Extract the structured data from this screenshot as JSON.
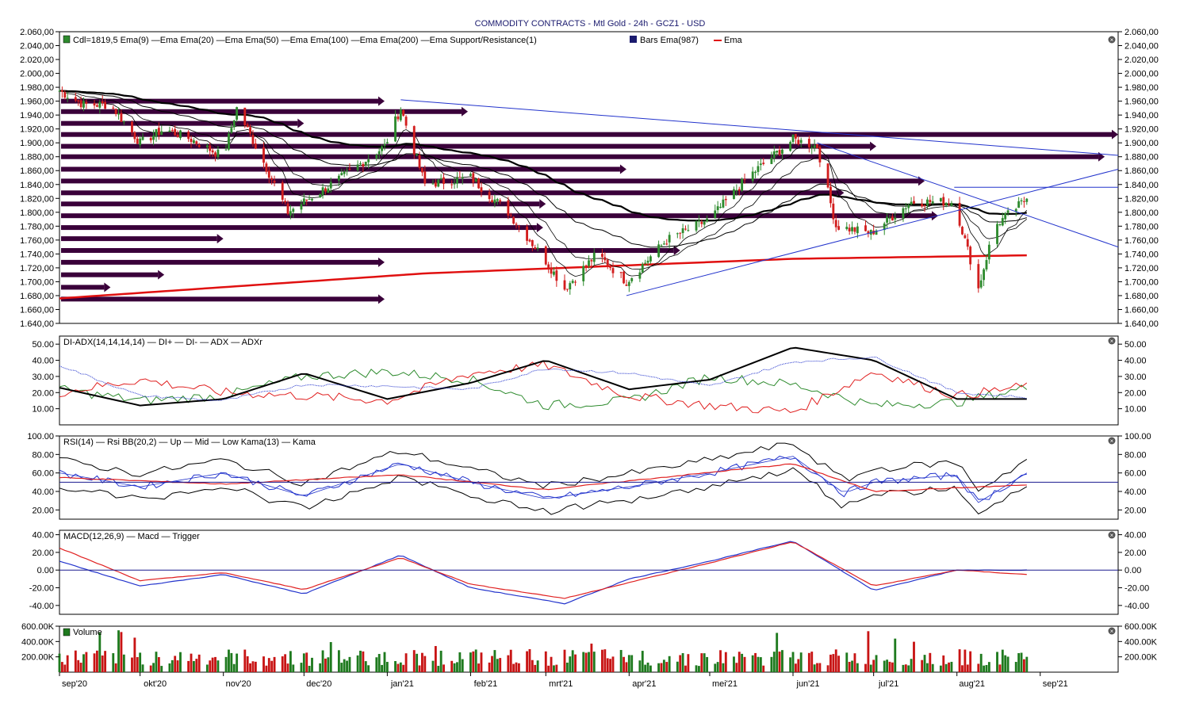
{
  "title": "COMMODITY CONTRACTS - Mtl Gold - 24h - GCZ1 - USD",
  "colors": {
    "up_candle": "#2e8b2e",
    "down_candle": "#d21e1e",
    "ema": "#000000",
    "ema987": "#e01010",
    "trend": "#2233cc",
    "sr_arrow": "#3a003a",
    "di_plus": "#2e8b2e",
    "di_minus": "#e02020",
    "adx": "#000000",
    "adxr": "#2233cc",
    "rsi": "#2233cc",
    "bb": "#000000",
    "kama": "#e02020",
    "macd": "#2233cc",
    "trigger": "#e02020",
    "vol_up": "#1e7a1e",
    "vol_down": "#c81414",
    "grid": "#000000"
  },
  "x_axis": {
    "labels": [
      "sep'20",
      "okt'20",
      "nov'20",
      "dec'20",
      "jan'21",
      "feb'21",
      "mrt'21",
      "apr'21",
      "mei'21",
      "jun'21",
      "jul'21",
      "aug'21",
      "sep'21"
    ]
  },
  "panels": {
    "price": {
      "legend": "Cdl=1819,5  Ema(9)  —Ema  Ema(20)  —Ema  Ema(50)  —Ema  Ema(100)  —Ema  Ema(200)  —Ema  Support/Resistance(1)",
      "legend_bars": "Bars  Ema(987)",
      "legend_ema": "Ema",
      "y_ticks": [
        "2.060,00",
        "2.040,00",
        "2.020,00",
        "2.000,00",
        "1.980,00",
        "1.960,00",
        "1.940,00",
        "1.920,00",
        "1.900,00",
        "1.880,00",
        "1.860,00",
        "1.840,00",
        "1.820,00",
        "1.800,00",
        "1.780,00",
        "1.760,00",
        "1.740,00",
        "1.720,00",
        "1.700,00",
        "1.680,00",
        "1.660,00",
        "1.640,00"
      ]
    },
    "adx": {
      "legend": "DI-ADX(14,14,14,14)  — DI+  — DI-  — ADX  — ADXr",
      "y_ticks": [
        "50.00",
        "40.00",
        "30.00",
        "20.00",
        "10.00"
      ]
    },
    "rsi": {
      "legend": "RSI(14)  — Rsi  BB(20,2)  — Up  — Mid  — Low  Kama(13)  — Kama",
      "y_ticks": [
        "100.00",
        "80.00",
        "60.00",
        "40.00",
        "20.00"
      ]
    },
    "macd": {
      "legend": "MACD(12,26,9)  — Macd  — Trigger",
      "y_ticks": [
        "40.00",
        "20.00",
        "0.00",
        "-20.00",
        "-40.00"
      ]
    },
    "volume": {
      "legend": "Volume",
      "y_ticks": [
        "600.00K",
        "400.00K",
        "200.00K"
      ]
    }
  },
  "chart_data": {
    "type": "candlestick",
    "title": "COMMODITY CONTRACTS - Mtl Gold - 24h - GCZ1 - USD",
    "last_close": 1819.5,
    "x_range": [
      "2020-09-01",
      "2021-09-30"
    ],
    "price_ylim": [
      1640,
      2060
    ],
    "close_series": {
      "dates": [
        "2020-09-01",
        "2020-09-10",
        "2020-09-20",
        "2020-10-01",
        "2020-10-10",
        "2020-10-20",
        "2020-11-01",
        "2020-11-06",
        "2020-11-15",
        "2020-11-25",
        "2020-12-01",
        "2020-12-15",
        "2020-12-31",
        "2021-01-06",
        "2021-01-15",
        "2021-02-01",
        "2021-02-15",
        "2021-03-01",
        "2021-03-08",
        "2021-03-20",
        "2021-03-31",
        "2021-04-15",
        "2021-05-01",
        "2021-05-15",
        "2021-06-01",
        "2021-06-10",
        "2021-06-17",
        "2021-06-30",
        "2021-07-15",
        "2021-07-31",
        "2021-08-09",
        "2021-08-15",
        "2021-08-27"
      ],
      "values": [
        1975,
        1955,
        1955,
        1900,
        1920,
        1905,
        1880,
        1950,
        1880,
        1800,
        1815,
        1850,
        1895,
        1950,
        1840,
        1850,
        1800,
        1730,
        1690,
        1740,
        1700,
        1760,
        1790,
        1850,
        1905,
        1895,
        1780,
        1770,
        1815,
        1815,
        1690,
        1780,
        1819.5
      ]
    },
    "volume_ylim": [
      0,
      600000
    ],
    "support_resistance": [
      1960,
      1945,
      1928,
      1912,
      1895,
      1880,
      1862,
      1845,
      1828,
      1812,
      1795,
      1778,
      1762,
      1745,
      1728,
      1710,
      1692,
      1675
    ],
    "ema987": {
      "dates": [
        "2020-09-01",
        "2021-01-15",
        "2021-06-01",
        "2021-08-27"
      ],
      "values": [
        1676,
        1712,
        1733,
        1738
      ]
    },
    "trendlines": [
      {
        "from": [
          "2021-01-06",
          1962
        ],
        "to": [
          "2021-09-30",
          1882
        ]
      },
      {
        "from": [
          "2021-03-31",
          1680
        ],
        "to": [
          "2021-09-30",
          1862
        ]
      },
      {
        "from": [
          "2021-06-10",
          1900
        ],
        "to": [
          "2021-09-30",
          1750
        ]
      },
      {
        "from": [
          "2021-07-31",
          1836
        ],
        "to": [
          "2021-09-30",
          1836
        ]
      }
    ],
    "adx_ylim": [
      0,
      55
    ],
    "rsi_ylim": [
      10,
      100
    ],
    "rsi_midline": 50,
    "macd_ylim": [
      -50,
      45
    ],
    "macd_zero": 0,
    "series": [
      {
        "name": "DI+",
        "dates": [
          "2020-09-01",
          "2020-10-01",
          "2020-11-01",
          "2020-12-01",
          "2021-01-01",
          "2021-02-01",
          "2021-03-01",
          "2021-04-01",
          "2021-05-01",
          "2021-06-01",
          "2021-07-01",
          "2021-08-01",
          "2021-08-27"
        ],
        "values": [
          22,
          15,
          18,
          30,
          33,
          28,
          12,
          15,
          30,
          25,
          12,
          14,
          23
        ]
      },
      {
        "name": "DI-",
        "dates": [
          "2020-09-01",
          "2020-10-01",
          "2020-11-01",
          "2020-12-01",
          "2021-01-01",
          "2021-02-01",
          "2021-03-01",
          "2021-04-01",
          "2021-05-01",
          "2021-06-01",
          "2021-07-01",
          "2021-08-01",
          "2021-08-27"
        ],
        "values": [
          20,
          28,
          20,
          18,
          15,
          32,
          37,
          18,
          12,
          8,
          33,
          18,
          24
        ]
      },
      {
        "name": "ADX",
        "dates": [
          "2020-09-01",
          "2020-10-01",
          "2020-11-01",
          "2020-12-01",
          "2021-01-01",
          "2021-02-01",
          "2021-03-01",
          "2021-04-01",
          "2021-05-01",
          "2021-06-01",
          "2021-07-01",
          "2021-08-01",
          "2021-08-27"
        ],
        "values": [
          23,
          12,
          16,
          32,
          16,
          26,
          40,
          22,
          28,
          48,
          40,
          16,
          16
        ]
      },
      {
        "name": "ADXr",
        "dates": [
          "2020-09-01",
          "2020-10-01",
          "2020-11-01",
          "2020-12-01",
          "2021-01-01",
          "2021-02-01",
          "2021-03-01",
          "2021-04-01",
          "2021-05-01",
          "2021-06-01",
          "2021-07-01",
          "2021-08-01",
          "2021-08-27"
        ],
        "values": [
          37,
          18,
          15,
          25,
          24,
          22,
          35,
          32,
          24,
          39,
          42,
          20,
          17
        ]
      },
      {
        "name": "Rsi",
        "dates": [
          "2020-09-01",
          "2020-10-01",
          "2020-11-01",
          "2020-12-01",
          "2021-01-06",
          "2021-02-01",
          "2021-03-01",
          "2021-04-01",
          "2021-05-01",
          "2021-06-01",
          "2021-06-20",
          "2021-07-01",
          "2021-08-01",
          "2021-08-09",
          "2021-08-27"
        ],
        "values": [
          60,
          45,
          60,
          35,
          70,
          50,
          32,
          45,
          60,
          78,
          38,
          50,
          58,
          28,
          60
        ]
      },
      {
        "name": "Kama",
        "dates": [
          "2020-09-01",
          "2020-11-01",
          "2021-01-06",
          "2021-03-01",
          "2021-06-01",
          "2021-07-01",
          "2021-08-27"
        ],
        "values": [
          55,
          48,
          58,
          42,
          70,
          40,
          47
        ]
      },
      {
        "name": "Macd",
        "dates": [
          "2020-09-01",
          "2020-10-01",
          "2020-11-01",
          "2020-12-01",
          "2021-01-06",
          "2021-02-01",
          "2021-03-08",
          "2021-04-01",
          "2021-05-01",
          "2021-06-01",
          "2021-07-01",
          "2021-08-01",
          "2021-08-27"
        ],
        "values": [
          10,
          -18,
          -5,
          -27,
          17,
          -20,
          -38,
          -10,
          10,
          33,
          -23,
          0,
          0
        ]
      },
      {
        "name": "Trigger",
        "dates": [
          "2020-09-01",
          "2020-10-01",
          "2020-11-01",
          "2020-12-01",
          "2021-01-06",
          "2021-02-01",
          "2021-03-08",
          "2021-04-01",
          "2021-05-01",
          "2021-06-01",
          "2021-07-01",
          "2021-08-01",
          "2021-08-27"
        ],
        "values": [
          25,
          -12,
          -3,
          -22,
          14,
          -16,
          -32,
          -14,
          8,
          32,
          -18,
          0,
          -5
        ]
      }
    ]
  }
}
